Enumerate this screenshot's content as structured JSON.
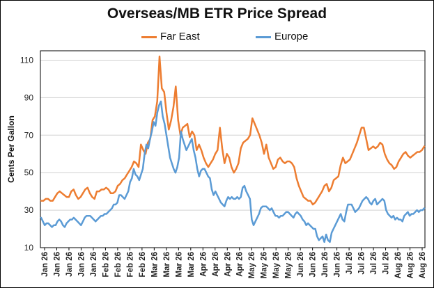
{
  "chart_data": {
    "type": "line",
    "title": "Overseas/MB ETR Price Spread",
    "ylabel": "Cents Per Gallon",
    "xlabel": "",
    "ylim": [
      10,
      115
    ],
    "yticks": [
      10,
      30,
      50,
      70,
      90,
      110
    ],
    "xtick_labels": [
      "Jan 26",
      "Jan 26",
      "Jan 26",
      "Jan 26",
      "Jan 26",
      "Feb 26",
      "Feb 26",
      "Feb 26",
      "Feb 26",
      "Mar 26",
      "Mar 26",
      "Mar 26",
      "Mar 26",
      "Apr 26",
      "Apr 26",
      "Apr 26",
      "Apr 26",
      "May 26",
      "May 26",
      "May 26",
      "May 26",
      "Jun 26",
      "Jun 26",
      "Jun 26",
      "Jun 26",
      "Jul 26",
      "Jul 26",
      "Jul 26",
      "Jul 26",
      "Aug 26",
      "Aug 26",
      "Aug 26"
    ],
    "grid": true,
    "legend_position": "top",
    "series": [
      {
        "name": "Far East",
        "color": "#ed7d31",
        "values": [
          35,
          35,
          36,
          36,
          35,
          35,
          37,
          39,
          40,
          39,
          38,
          37,
          37,
          40,
          41,
          38,
          36,
          37,
          39,
          41,
          42,
          39,
          37,
          36,
          40,
          40,
          41,
          41,
          42,
          41,
          39,
          39,
          40,
          43,
          44,
          46,
          47,
          49,
          51,
          53,
          56,
          55,
          53,
          65,
          62,
          60,
          66,
          68,
          78,
          80,
          88,
          112,
          95,
          93,
          82,
          73,
          78,
          85,
          96,
          78,
          70,
          74,
          75,
          76,
          69,
          72,
          70,
          62,
          65,
          62,
          58,
          55,
          53,
          55,
          57,
          60,
          62,
          74,
          63,
          55,
          60,
          58,
          53,
          50,
          52,
          55,
          63,
          66,
          67,
          68,
          70,
          79,
          76,
          73,
          70,
          66,
          60,
          65,
          58,
          55,
          52,
          53,
          57,
          58,
          56,
          55,
          56,
          56,
          55,
          53,
          47,
          43,
          40,
          37,
          36,
          35,
          35,
          33,
          34,
          36,
          38,
          40,
          43,
          44,
          40,
          42,
          46,
          47,
          48,
          54,
          58,
          55,
          56,
          57,
          60,
          63,
          66,
          70,
          74,
          74,
          68,
          62,
          63,
          64,
          63,
          64,
          66,
          65,
          60,
          57,
          55,
          54,
          52,
          53,
          56,
          58,
          60,
          61,
          59,
          58,
          59,
          60,
          61,
          61,
          62,
          64
        ]
      },
      {
        "name": "Europe",
        "color": "#5b9bd5",
        "values": [
          26,
          24,
          22,
          23,
          23,
          22,
          21,
          22,
          22,
          24,
          25,
          24,
          22,
          21,
          23,
          24,
          25,
          25,
          26,
          25,
          24,
          23,
          22,
          24,
          26,
          27,
          27,
          27,
          26,
          25,
          24,
          25,
          26,
          27,
          27,
          28,
          28,
          29,
          30,
          31,
          33,
          33,
          34,
          38,
          38,
          37,
          36,
          38,
          40,
          45,
          47,
          52,
          49,
          48,
          46,
          49,
          52,
          60,
          65,
          63,
          68,
          72,
          77,
          75,
          82,
          86,
          88,
          80,
          76,
          70,
          64,
          58,
          55,
          52,
          50,
          53,
          58,
          72,
          68,
          65,
          62,
          64,
          66,
          68,
          62,
          58,
          52,
          48,
          51,
          52,
          52,
          50,
          48,
          47,
          41,
          38,
          40,
          38,
          36,
          34,
          33,
          32,
          35,
          37,
          36,
          37,
          36,
          36,
          37,
          36,
          37,
          42,
          43,
          40,
          38,
          36,
          25,
          22,
          24,
          26,
          28,
          31,
          32,
          32,
          32,
          31,
          30,
          31,
          29,
          27,
          27,
          26,
          27,
          27,
          28,
          29,
          29,
          28,
          27,
          26,
          28,
          29,
          28,
          27,
          25,
          24,
          22,
          23,
          22,
          21,
          20,
          20,
          16,
          14,
          15,
          16,
          13,
          17,
          14,
          13,
          18,
          20,
          22,
          24,
          26,
          28,
          25,
          24,
          29,
          33,
          33,
          33,
          31,
          29,
          30,
          31,
          33,
          35,
          36,
          37,
          36,
          34,
          33,
          35,
          36,
          33,
          34,
          35,
          36,
          35,
          30,
          28,
          27,
          26,
          27,
          25,
          26,
          25,
          25,
          24,
          27,
          28,
          29,
          27,
          28,
          28,
          29,
          30,
          29,
          30,
          30,
          31
        ]
      }
    ]
  }
}
